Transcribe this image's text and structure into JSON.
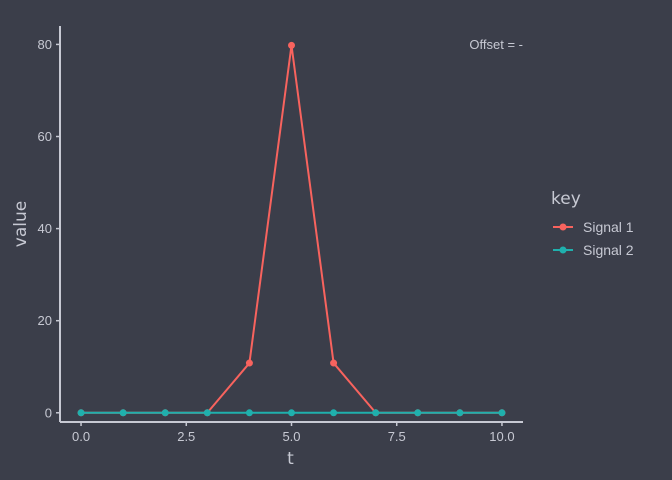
{
  "chart_data": {
    "type": "line",
    "xlabel": "t",
    "ylabel": "value",
    "annotation": "Offset = -",
    "xlim": [
      -0.5,
      10.5
    ],
    "ylim": [
      -2,
      84
    ],
    "xticks": [
      0,
      2.5,
      5,
      7.5,
      10
    ],
    "xtick_labels": [
      "0.0",
      "2.5",
      "5.0",
      "7.5",
      "10.0"
    ],
    "yticks": [
      0,
      20,
      40,
      60,
      80
    ],
    "ytick_labels": [
      "0",
      "20",
      "40",
      "60",
      "80"
    ],
    "legend": {
      "title": "key",
      "placement": "right"
    },
    "grid": false,
    "x": [
      0,
      1,
      2,
      3,
      4,
      5,
      6,
      7,
      8,
      9,
      10
    ],
    "series": [
      {
        "name": "Signal 1",
        "color": "#f8635e",
        "values": [
          0,
          0,
          0,
          0,
          10.8,
          79.8,
          10.8,
          0,
          0,
          0,
          0
        ]
      },
      {
        "name": "Signal 2",
        "color": "#1fb0ad",
        "values": [
          0,
          0,
          0,
          0,
          0,
          0,
          0,
          0,
          0,
          0,
          0
        ]
      }
    ]
  },
  "colors": {
    "background": "#3b3e4a",
    "axis": "#c7c9d3"
  }
}
